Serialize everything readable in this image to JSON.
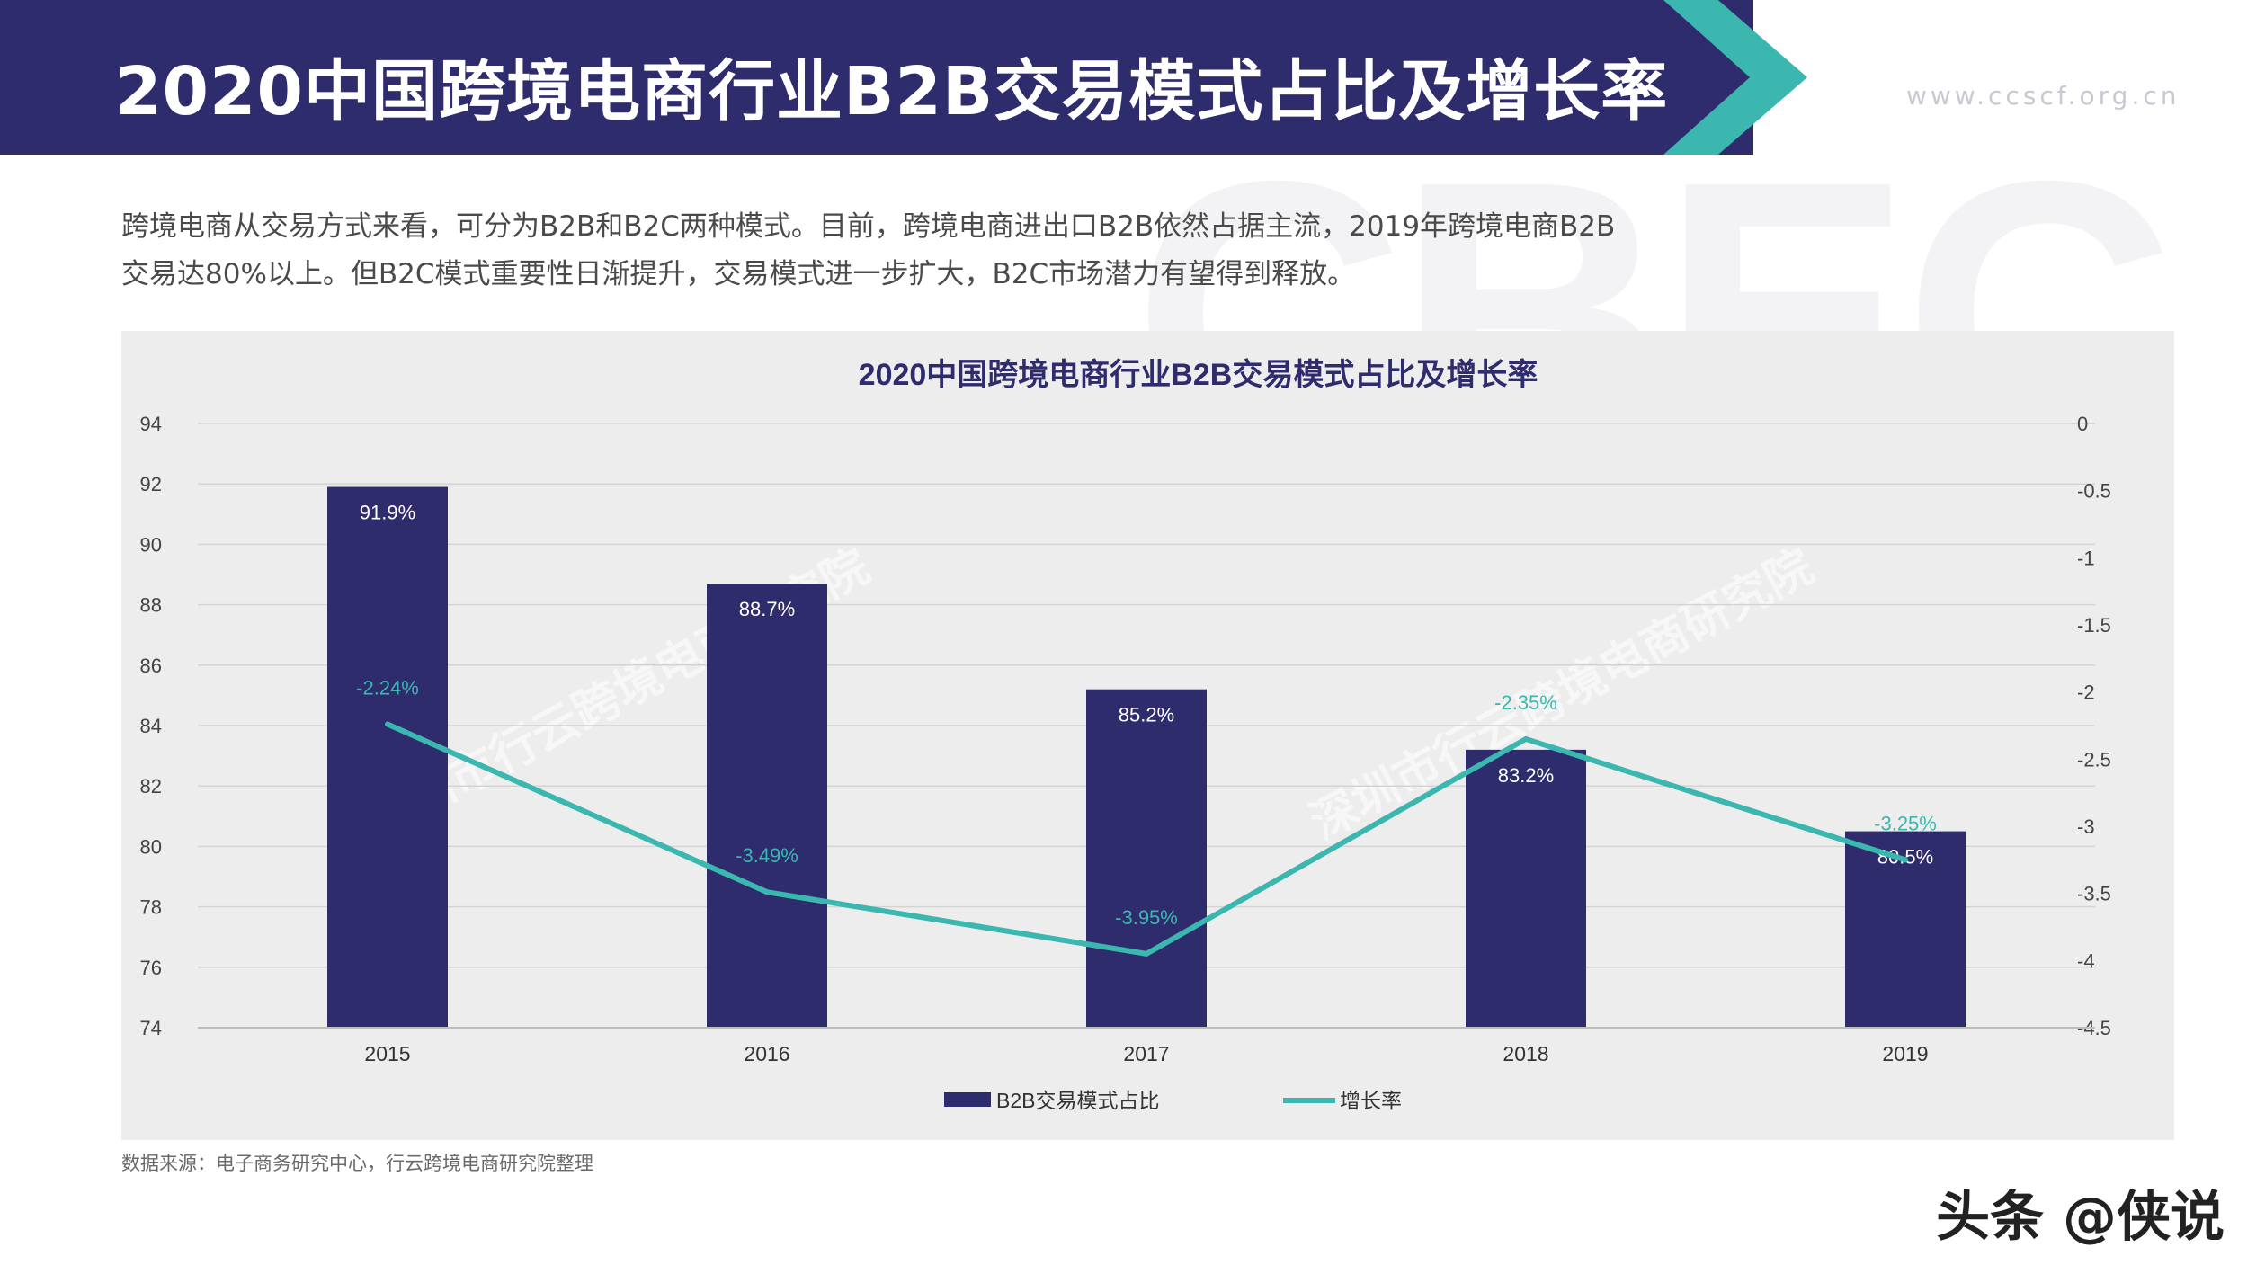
{
  "header": {
    "title": "2020中国跨境电商行业B2B交易模式占比及增长率",
    "site": "www.ccscf.org.cn",
    "watermark": "CBEC",
    "colors": {
      "band": "#2e2c6c",
      "accent": "#3bb7b0"
    }
  },
  "intro": {
    "text": "跨境电商从交易方式来看，可分为B2B和B2C两种模式。目前，跨境电商进出口B2B依然占据主流，2019年跨境电商B2B交易达80%以上。但B2C模式重要性日渐提升，交易模式进一步扩大，B2C市场潜力有望得到释放。"
  },
  "source": "数据来源：电子商务研究中心，行云跨境电商研究院整理",
  "footer_brand": "头条 @侠说",
  "chart_data": {
    "type": "bar",
    "title": "2020中国跨境电商行业B2B交易模式占比及增长率",
    "categories": [
      "2015",
      "2016",
      "2017",
      "2018",
      "2019"
    ],
    "series": [
      {
        "name": "B2B交易模式占比",
        "type": "bar",
        "axis": "left",
        "color": "#2e2c6c",
        "values": [
          91.9,
          88.7,
          85.2,
          83.2,
          80.5
        ],
        "labels": [
          "91.9%",
          "88.7%",
          "85.2%",
          "83.2%",
          "80.5%"
        ]
      },
      {
        "name": "增长率",
        "type": "line",
        "axis": "right",
        "color": "#3bb7b0",
        "values": [
          -2.24,
          -3.49,
          -3.95,
          -2.35,
          -3.25
        ],
        "labels": [
          "-2.24%",
          "-3.49%",
          "-3.95%",
          "-2.35%",
          "-3.25%"
        ]
      }
    ],
    "y_left": {
      "min": 74,
      "max": 94,
      "ticks": [
        "94",
        "92",
        "90",
        "88",
        "86",
        "84",
        "82",
        "80",
        "78",
        "76",
        "74"
      ]
    },
    "y_right": {
      "min": -4.5,
      "max": 0,
      "ticks": [
        "0",
        "-0.5",
        "-1",
        "-1.5",
        "-2",
        "-2.5",
        "-3",
        "-3.5",
        "-4",
        "-4.5"
      ]
    },
    "grid": true,
    "legend": "bottom-center",
    "watermarks": [
      "深圳市行云跨境电商研究院",
      "深圳市行云跨境电商研究院"
    ]
  }
}
